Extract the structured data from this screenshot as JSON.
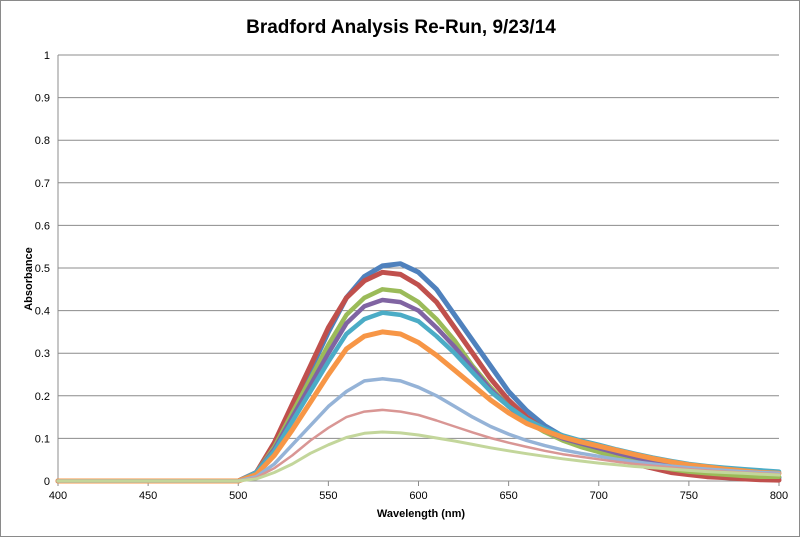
{
  "chart_data": {
    "type": "line",
    "title": "Bradford Analysis Re-Run, 9/23/14",
    "xlabel": "Wavelength (nm)",
    "ylabel": "Absorbance",
    "xlim": [
      400,
      800
    ],
    "ylim": [
      0,
      1
    ],
    "x_ticks": [
      "400",
      "450",
      "500",
      "550",
      "600",
      "650",
      "700",
      "750",
      "800"
    ],
    "y_ticks": [
      "0",
      "0.1",
      "0.2",
      "0.3",
      "0.4",
      "0.5",
      "0.6",
      "0.7",
      "0.8",
      "0.9",
      "1"
    ],
    "grid": "horizontal",
    "legend": "none",
    "x": [
      400,
      410,
      420,
      430,
      440,
      450,
      460,
      470,
      480,
      490,
      500,
      510,
      520,
      530,
      540,
      550,
      560,
      570,
      580,
      590,
      600,
      610,
      620,
      630,
      640,
      650,
      660,
      670,
      680,
      690,
      700,
      710,
      720,
      730,
      740,
      750,
      760,
      770,
      780,
      790,
      800
    ],
    "series": [
      {
        "color": "#4F81BD",
        "values": [
          0,
          0,
          0,
          0,
          0,
          0,
          0,
          0,
          0,
          0,
          0,
          0.02,
          0.08,
          0.17,
          0.26,
          0.35,
          0.43,
          0.48,
          0.505,
          0.51,
          0.49,
          0.45,
          0.39,
          0.33,
          0.27,
          0.21,
          0.165,
          0.13,
          0.105,
          0.09,
          0.075,
          0.06,
          0.05,
          0.04,
          0.03,
          0.025,
          0.02,
          0.015,
          0.012,
          0.01,
          0.008
        ]
      },
      {
        "color": "#C0504D",
        "values": [
          0,
          0,
          0,
          0,
          0,
          0,
          0,
          0,
          0,
          0,
          0,
          0.02,
          0.09,
          0.18,
          0.27,
          0.36,
          0.43,
          0.47,
          0.49,
          0.485,
          0.46,
          0.42,
          0.36,
          0.3,
          0.24,
          0.19,
          0.15,
          0.12,
          0.1,
          0.085,
          0.07,
          0.055,
          0.04,
          0.03,
          0.02,
          0.015,
          0.01,
          0.008,
          0.005,
          0.003,
          0.002
        ]
      },
      {
        "color": "#9BBB59",
        "values": [
          0,
          0,
          0,
          0,
          0,
          0,
          0,
          0,
          0,
          0,
          0,
          0.02,
          0.08,
          0.16,
          0.24,
          0.32,
          0.39,
          0.43,
          0.45,
          0.445,
          0.42,
          0.38,
          0.33,
          0.27,
          0.22,
          0.175,
          0.14,
          0.115,
          0.095,
          0.08,
          0.068,
          0.055,
          0.045,
          0.036,
          0.028,
          0.022,
          0.018,
          0.015,
          0.012,
          0.01,
          0.01
        ]
      },
      {
        "color": "#8064A2",
        "values": [
          0,
          0,
          0,
          0,
          0,
          0,
          0,
          0,
          0,
          0,
          0,
          0.02,
          0.075,
          0.15,
          0.225,
          0.3,
          0.37,
          0.41,
          0.425,
          0.42,
          0.4,
          0.36,
          0.315,
          0.265,
          0.215,
          0.175,
          0.14,
          0.118,
          0.1,
          0.088,
          0.077,
          0.066,
          0.056,
          0.047,
          0.04,
          0.034,
          0.03,
          0.026,
          0.023,
          0.02,
          0.018
        ]
      },
      {
        "color": "#4BACC6",
        "values": [
          0,
          0,
          0,
          0,
          0,
          0,
          0,
          0,
          0,
          0,
          0,
          0.02,
          0.07,
          0.14,
          0.21,
          0.28,
          0.345,
          0.38,
          0.395,
          0.39,
          0.375,
          0.34,
          0.3,
          0.255,
          0.21,
          0.175,
          0.145,
          0.123,
          0.107,
          0.095,
          0.085,
          0.074,
          0.064,
          0.055,
          0.047,
          0.04,
          0.035,
          0.031,
          0.028,
          0.025,
          0.022
        ]
      },
      {
        "color": "#F79646",
        "values": [
          0,
          0,
          0,
          0,
          0,
          0,
          0,
          0,
          0,
          0,
          0,
          0.015,
          0.06,
          0.12,
          0.185,
          0.25,
          0.31,
          0.34,
          0.35,
          0.345,
          0.325,
          0.295,
          0.26,
          0.225,
          0.19,
          0.16,
          0.135,
          0.118,
          0.103,
          0.092,
          0.082,
          0.072,
          0.062,
          0.053,
          0.045,
          0.038,
          0.033,
          0.028,
          0.024,
          0.02,
          0.018
        ]
      },
      {
        "color": "#95B3D7",
        "values": [
          0,
          0,
          0,
          0,
          0,
          0,
          0,
          0,
          0,
          0,
          0,
          0.01,
          0.04,
          0.085,
          0.13,
          0.175,
          0.21,
          0.235,
          0.24,
          0.235,
          0.22,
          0.2,
          0.175,
          0.15,
          0.128,
          0.11,
          0.095,
          0.083,
          0.073,
          0.065,
          0.058,
          0.051,
          0.045,
          0.04,
          0.035,
          0.031,
          0.028,
          0.025,
          0.022,
          0.02,
          0.018
        ]
      },
      {
        "color": "#D99694",
        "values": [
          0,
          0,
          0,
          0,
          0,
          0,
          0,
          0,
          0,
          0,
          0,
          0.008,
          0.03,
          0.06,
          0.095,
          0.125,
          0.15,
          0.163,
          0.167,
          0.163,
          0.155,
          0.142,
          0.128,
          0.114,
          0.101,
          0.09,
          0.08,
          0.071,
          0.063,
          0.057,
          0.051,
          0.045,
          0.04,
          0.036,
          0.032,
          0.028,
          0.025,
          0.022,
          0.02,
          0.018,
          0.016
        ]
      },
      {
        "color": "#C3D69B",
        "values": [
          0,
          0,
          0,
          0,
          0,
          0,
          0,
          0,
          0,
          0,
          0,
          0.005,
          0.02,
          0.04,
          0.065,
          0.085,
          0.102,
          0.112,
          0.115,
          0.113,
          0.108,
          0.101,
          0.094,
          0.086,
          0.078,
          0.071,
          0.064,
          0.058,
          0.052,
          0.047,
          0.042,
          0.038,
          0.034,
          0.031,
          0.028,
          0.025,
          0.022,
          0.02,
          0.018,
          0.016,
          0.014
        ]
      }
    ]
  }
}
